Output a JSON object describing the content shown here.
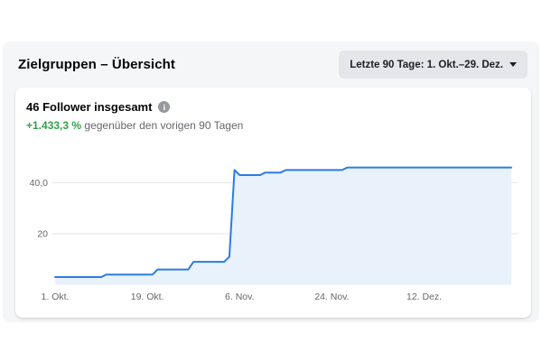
{
  "header": {
    "title": "Zielgruppen – Übersicht",
    "date_range_label": "Letzte 90 Tage: 1. Okt.–29. Dez.",
    "date_range_caret": "chevron-down"
  },
  "card": {
    "title": "46 Follower insgesamt",
    "info_icon_glyph": "i",
    "delta": "+1.433,3 %",
    "delta_suffix": " gegenüber den vorigen 90 Tagen"
  },
  "colors": {
    "panel_bg": "#f5f6f8",
    "card_bg": "#ffffff",
    "button_bg": "#e4e6eb",
    "text_primary": "#050505",
    "text_secondary": "#65676b",
    "positive_green": "#31a24c",
    "line_blue": "#2d7ce0",
    "area_fill": "#e9f1fb",
    "gridline": "#e4e6eb"
  },
  "chart_data": {
    "type": "area",
    "title": "46 Follower insgesamt",
    "x_unit": "day (1. Okt. – 29. Dez., 90 Tage)",
    "x_tick_labels": [
      "1. Okt.",
      "19. Okt.",
      "6. Nov.",
      "24. Nov.",
      "12. Dez."
    ],
    "x_tick_days": [
      0,
      18,
      36,
      54,
      72
    ],
    "x_domain_days": [
      0,
      89
    ],
    "y_ticks": [
      20,
      40
    ],
    "y_tick_labels": [
      "20",
      "40,0"
    ],
    "ylim": [
      0,
      50
    ],
    "grid": true,
    "legend": false,
    "final_value": 46,
    "values": [
      3,
      3,
      3,
      3,
      3,
      3,
      3,
      3,
      3,
      3,
      4,
      4,
      4,
      4,
      4,
      4,
      4,
      4,
      4,
      4,
      6,
      6,
      6,
      6,
      6,
      6,
      6,
      9,
      9,
      9,
      9,
      9,
      9,
      9,
      11,
      45,
      43,
      43,
      43,
      43,
      43,
      44,
      44,
      44,
      44,
      45,
      45,
      45,
      45,
      45,
      45,
      45,
      45,
      45,
      45,
      45,
      45,
      46,
      46,
      46,
      46,
      46,
      46,
      46,
      46,
      46,
      46,
      46,
      46,
      46,
      46,
      46,
      46,
      46,
      46,
      46,
      46,
      46,
      46,
      46,
      46,
      46,
      46,
      46,
      46,
      46,
      46,
      46,
      46,
      46
    ]
  }
}
